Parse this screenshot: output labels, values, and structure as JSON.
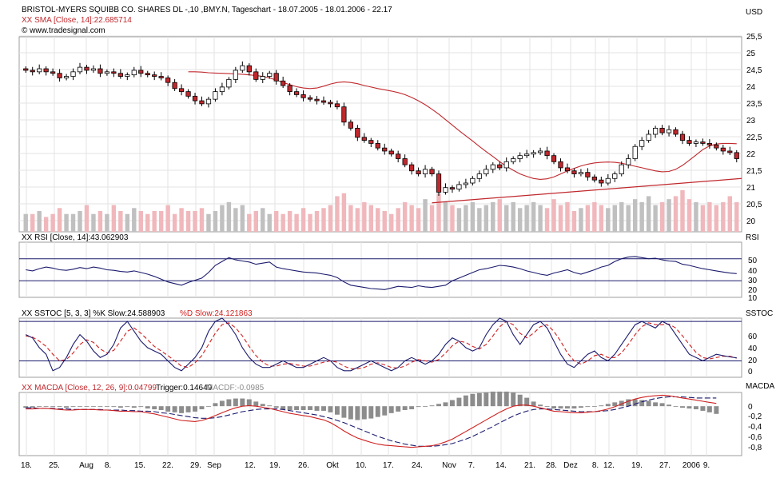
{
  "header": {
    "line1": "BRISTOL-MYERS SQUIBB CO. SHARES DL -,10 ,BMY.N, Tageschart - 18.07.2005 - 18.01.2006 - 22.17",
    "line2": "XX SMA [Close, 14]:22.685714",
    "line3": "© www.tradesignal.com",
    "currency": "USD"
  },
  "colors": {
    "bull_fill": "#ffffff",
    "bear_fill": "#c0282d",
    "sma": "#c0282d",
    "volume_up": "#c0c0c0",
    "volume_down": "#f0b8bc",
    "rsi_line": "#1b1b6e",
    "stoch_k": "#1b1b6e",
    "stoch_d": "#d02020",
    "macd_line": "#d02020",
    "trigger_line": "#1b1b6e",
    "hist": "#8c8c8c",
    "frame": "#1b1b6e",
    "grid": "#e3e3e3"
  },
  "panels": {
    "rsi": {
      "label": "XX RSI [Close, 14]:43.062903",
      "tag": "RSI"
    },
    "stoch": {
      "label_k": "XX SSTOC [5, 3, 3] %K Slow:24.588903",
      "label_d": "%D Slow:24.121863",
      "tag": "SSTOC"
    },
    "macd": {
      "label_main": "XX MACDA [Close, 12, 26, 9]:0.04799",
      "label_trig": "Trigger:0.14649",
      "label_diff": "MACDF:-0.0985",
      "tag": "MACDA"
    }
  },
  "x_axis_labels": [
    "18.",
    "25.",
    "Aug",
    "8.",
    "15.",
    "22.",
    "29.",
    "Sep",
    "12.",
    "19.",
    "26.",
    "Okt",
    "10.",
    "17.",
    "24.",
    "Nov",
    "7.",
    "14.",
    "21.",
    "28.",
    "Dez",
    "8.",
    "12.",
    "19.",
    "27.",
    "2006",
    "9."
  ],
  "chart_data": [
    {
      "type": "candlestick",
      "title": "BRISTOL-MYERS SQUIBB CO. SHARES DL -,10 ,BMY.N, Tageschart - 18.07.2005 - 18.01.2006 - 22.17",
      "ylabel": "USD",
      "ylim": [
        19.8,
        26.2
      ],
      "y_ticks": [
        "25,5",
        "25",
        "24,5",
        "24",
        "23,5",
        "23",
        "22,5",
        "22",
        "21,5",
        "21",
        "20,5",
        "20"
      ],
      "x_tick_labels": [
        "18.",
        "25.",
        "Aug",
        "8.",
        "15.",
        "22.",
        "29.",
        "Sep",
        "12.",
        "19.",
        "26.",
        "Okt",
        "10.",
        "17.",
        "24.",
        "Nov",
        "7.",
        "14.",
        "21.",
        "28.",
        "Dez",
        "8.",
        "12.",
        "19.",
        "27.",
        "2006",
        "9."
      ],
      "close": [
        25.1,
        25.05,
        25.15,
        25.05,
        25.0,
        24.85,
        24.9,
        25.05,
        25.2,
        25.1,
        25.15,
        25.0,
        25.05,
        25.0,
        24.9,
        24.95,
        25.1,
        25.0,
        24.95,
        24.9,
        24.85,
        24.7,
        24.5,
        24.4,
        24.25,
        24.1,
        24.0,
        24.15,
        24.4,
        24.55,
        24.8,
        25.1,
        25.25,
        25.05,
        24.8,
        24.9,
        25.0,
        24.75,
        24.6,
        24.4,
        24.3,
        24.2,
        24.15,
        24.1,
        24.05,
        24.0,
        23.9,
        23.4,
        23.2,
        22.9,
        22.8,
        22.7,
        22.55,
        22.45,
        22.35,
        22.2,
        22.0,
        21.8,
        21.7,
        21.85,
        21.7,
        21.1,
        21.25,
        21.2,
        21.35,
        21.4,
        21.55,
        21.7,
        21.85,
        22.0,
        21.9,
        22.1,
        22.2,
        22.3,
        22.35,
        22.4,
        22.45,
        22.3,
        22.1,
        21.9,
        21.8,
        21.7,
        21.75,
        21.6,
        21.5,
        21.4,
        21.55,
        21.7,
        22.0,
        22.2,
        22.6,
        22.8,
        23.0,
        23.2,
        23.05,
        23.15,
        23.0,
        22.8,
        22.7,
        22.75,
        22.7,
        22.65,
        22.55,
        22.45,
        22.4,
        22.2
      ],
      "sma_ylim_same": true,
      "sma_14": [
        25.05,
        25.05,
        25.04,
        25.02,
        25.01,
        25.0,
        24.99,
        24.98,
        24.97,
        24.95,
        24.93,
        24.9,
        24.85,
        24.78,
        24.7,
        24.63,
        24.56,
        24.52,
        24.5,
        24.52,
        24.58,
        24.65,
        24.7,
        24.72,
        24.7,
        24.66,
        24.6,
        24.55,
        24.5,
        24.46,
        24.42,
        24.37,
        24.3,
        24.21,
        24.1,
        23.97,
        23.82,
        23.66,
        23.48,
        23.3,
        23.12,
        22.95,
        22.78,
        22.6,
        22.43,
        22.27,
        22.1,
        21.95,
        21.82,
        21.7,
        21.62,
        21.55,
        21.52,
        21.54,
        21.6,
        21.7,
        21.8,
        21.88,
        21.96,
        22.02,
        22.06,
        22.08,
        22.09,
        22.08,
        22.05,
        22.0,
        21.95,
        21.9,
        21.85,
        21.8,
        21.77,
        21.78,
        21.85,
        21.98,
        22.15,
        22.32,
        22.5,
        22.62,
        22.68,
        22.7,
        22.7,
        22.69
      ],
      "support_line": {
        "start": 20.75,
        "end": 21.55
      },
      "volume": [
        6,
        6,
        7,
        5,
        6,
        8,
        6,
        6,
        7,
        9,
        6,
        7,
        6,
        9,
        7,
        6,
        8,
        7,
        6,
        7,
        7,
        9,
        6,
        8,
        7,
        7,
        8,
        6,
        7,
        9,
        10,
        8,
        9,
        6,
        7,
        8,
        6,
        7,
        6,
        7,
        6,
        8,
        6,
        7,
        8,
        9,
        12,
        13,
        9,
        8,
        10,
        9,
        8,
        7,
        6,
        8,
        10,
        9,
        8,
        11,
        9,
        13,
        10,
        9,
        8,
        9,
        10,
        8,
        9,
        10,
        11,
        9,
        10,
        8,
        9,
        10,
        9,
        8,
        11,
        9,
        10,
        7,
        8,
        9,
        10,
        9,
        8,
        9,
        10,
        9,
        11,
        10,
        12,
        9,
        10,
        11,
        12,
        14,
        11,
        10,
        9,
        10,
        9,
        10,
        12,
        10
      ]
    },
    {
      "type": "line",
      "title": "XX RSI [Close, 14]:43.062903",
      "ylabel": "RSI",
      "ylim": [
        0,
        100
      ],
      "y_ticks": [
        "50",
        "40",
        "30",
        "20",
        "10"
      ],
      "ref_lines": [
        30,
        70
      ],
      "series": [
        {
          "name": "RSI",
          "values": [
            50,
            48,
            52,
            55,
            53,
            50,
            49,
            51,
            54,
            52,
            55,
            53,
            50,
            49,
            47,
            46,
            48,
            45,
            42,
            38,
            33,
            28,
            25,
            22,
            27,
            31,
            35,
            45,
            58,
            65,
            72,
            68,
            66,
            64,
            60,
            62,
            64,
            55,
            52,
            50,
            48,
            46,
            45,
            44,
            42,
            40,
            36,
            28,
            22,
            20,
            18,
            16,
            15,
            14,
            17,
            20,
            19,
            18,
            21,
            19,
            18,
            20,
            22,
            30,
            35,
            40,
            45,
            50,
            52,
            55,
            58,
            57,
            55,
            52,
            48,
            45,
            42,
            40,
            44,
            47,
            50,
            45,
            42,
            46,
            50,
            55,
            58,
            65,
            70,
            73,
            74,
            72,
            70,
            71,
            68,
            66,
            65,
            60,
            58,
            55,
            52,
            50,
            48,
            46,
            44,
            43
          ]
        }
      ]
    },
    {
      "type": "line",
      "title": "XX SSTOC [5, 3, 3] %K Slow:24.588903 %D Slow:24.121863",
      "ylabel": "SSTOC",
      "ylim": [
        -5,
        85
      ],
      "y_ticks": [
        "60",
        "40",
        "20",
        "0"
      ],
      "ref_lines": [
        20,
        80
      ],
      "series": [
        {
          "name": "%K Slow",
          "values": [
            60,
            55,
            40,
            30,
            5,
            10,
            25,
            45,
            60,
            50,
            35,
            25,
            30,
            45,
            70,
            80,
            65,
            50,
            40,
            35,
            30,
            20,
            10,
            5,
            15,
            25,
            40,
            65,
            80,
            85,
            75,
            60,
            40,
            25,
            15,
            10,
            10,
            15,
            20,
            15,
            10,
            10,
            15,
            20,
            25,
            20,
            10,
            5,
            5,
            10,
            15,
            20,
            15,
            10,
            5,
            10,
            20,
            25,
            20,
            15,
            20,
            30,
            45,
            55,
            50,
            40,
            35,
            40,
            60,
            75,
            85,
            80,
            60,
            45,
            60,
            75,
            80,
            70,
            50,
            30,
            15,
            10,
            20,
            30,
            35,
            25,
            20,
            30,
            45,
            60,
            75,
            80,
            75,
            70,
            80,
            75,
            60,
            45,
            30,
            25,
            20,
            25,
            30,
            28,
            26,
            24.6
          ]
        },
        {
          "name": "%D Slow",
          "values": [
            58,
            56,
            50,
            42,
            30,
            20,
            22,
            32,
            45,
            52,
            48,
            38,
            32,
            36,
            50,
            65,
            70,
            62,
            52,
            42,
            35,
            28,
            20,
            12,
            10,
            17,
            28,
            45,
            62,
            75,
            78,
            70,
            58,
            42,
            28,
            18,
            12,
            12,
            15,
            16,
            14,
            12,
            12,
            15,
            18,
            20,
            18,
            12,
            8,
            8,
            10,
            15,
            17,
            14,
            10,
            9,
            12,
            18,
            22,
            20,
            18,
            22,
            32,
            43,
            50,
            48,
            42,
            38,
            45,
            58,
            72,
            80,
            75,
            62,
            55,
            62,
            72,
            75,
            65,
            50,
            32,
            20,
            15,
            20,
            28,
            30,
            25,
            25,
            32,
            45,
            60,
            72,
            78,
            75,
            75,
            76,
            70,
            58,
            45,
            33,
            25,
            23,
            25,
            27,
            27,
            24.1
          ]
        }
      ]
    },
    {
      "type": "line",
      "title": "XX MACDA [Close, 12, 26, 9]:0.04799 Trigger:0.14649 MACDF:-0.0985",
      "ylabel": "MACDA",
      "ylim": [
        -0.9,
        0.25
      ],
      "y_ticks": [
        "0",
        "-0,2",
        "-0,4",
        "-0,6",
        "-0,8"
      ],
      "series": [
        {
          "name": "MACDA",
          "values": [
            -0.05,
            -0.05,
            -0.04,
            -0.04,
            -0.05,
            -0.06,
            -0.07,
            -0.07,
            -0.06,
            -0.06,
            -0.06,
            -0.07,
            -0.07,
            -0.08,
            -0.09,
            -0.09,
            -0.1,
            -0.1,
            -0.12,
            -0.14,
            -0.17,
            -0.2,
            -0.23,
            -0.26,
            -0.27,
            -0.28,
            -0.26,
            -0.22,
            -0.17,
            -0.12,
            -0.07,
            -0.03,
            0,
            0.01,
            0,
            -0.02,
            -0.04,
            -0.07,
            -0.1,
            -0.13,
            -0.15,
            -0.17,
            -0.19,
            -0.22,
            -0.25,
            -0.3,
            -0.37,
            -0.45,
            -0.52,
            -0.58,
            -0.62,
            -0.66,
            -0.69,
            -0.71,
            -0.72,
            -0.73,
            -0.74,
            -0.75,
            -0.74,
            -0.73,
            -0.72,
            -0.69,
            -0.65,
            -0.6,
            -0.53,
            -0.46,
            -0.39,
            -0.32,
            -0.25,
            -0.18,
            -0.11,
            -0.05,
            0,
            0.02,
            0.02,
            0,
            -0.03,
            -0.06,
            -0.09,
            -0.1,
            -0.11,
            -0.12,
            -0.12,
            -0.11,
            -0.1,
            -0.08,
            -0.05,
            -0.01,
            0.04,
            0.09,
            0.13,
            0.16,
            0.18,
            0.19,
            0.2,
            0.19,
            0.17,
            0.15,
            0.13,
            0.11,
            0.09,
            0.07,
            0.05
          ]
        },
        {
          "name": "Trigger",
          "values": [
            -0.03,
            -0.03,
            -0.04,
            -0.04,
            -0.04,
            -0.05,
            -0.05,
            -0.06,
            -0.06,
            -0.06,
            -0.06,
            -0.06,
            -0.07,
            -0.07,
            -0.07,
            -0.08,
            -0.08,
            -0.09,
            -0.09,
            -0.1,
            -0.12,
            -0.13,
            -0.15,
            -0.17,
            -0.19,
            -0.21,
            -0.22,
            -0.22,
            -0.21,
            -0.19,
            -0.16,
            -0.13,
            -0.1,
            -0.08,
            -0.06,
            -0.05,
            -0.05,
            -0.05,
            -0.06,
            -0.08,
            -0.1,
            -0.12,
            -0.14,
            -0.16,
            -0.19,
            -0.22,
            -0.26,
            -0.3,
            -0.35,
            -0.4,
            -0.45,
            -0.5,
            -0.55,
            -0.59,
            -0.63,
            -0.66,
            -0.69,
            -0.71,
            -0.73,
            -0.73,
            -0.73,
            -0.72,
            -0.7,
            -0.68,
            -0.64,
            -0.6,
            -0.55,
            -0.49,
            -0.43,
            -0.37,
            -0.3,
            -0.24,
            -0.18,
            -0.13,
            -0.09,
            -0.06,
            -0.05,
            -0.05,
            -0.06,
            -0.07,
            -0.08,
            -0.09,
            -0.1,
            -0.1,
            -0.1,
            -0.09,
            -0.08,
            -0.06,
            -0.03,
            0,
            0.04,
            0.08,
            0.11,
            0.14,
            0.16,
            0.17,
            0.17,
            0.17,
            0.16,
            0.15,
            0.15,
            0.15,
            0.15
          ]
        }
      ]
    }
  ]
}
